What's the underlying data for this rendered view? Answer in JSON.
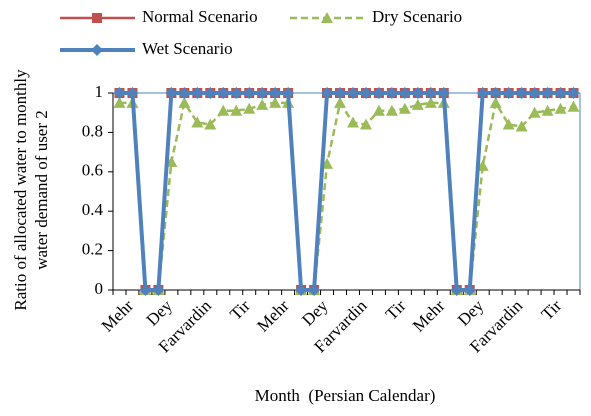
{
  "chart_data": {
    "type": "line",
    "ylabel": [
      "Ratio of allocated water to monthly",
      "water demand of user 2"
    ],
    "xlabel": "Month  (Persian Calendar)",
    "categories": [
      "Mehr",
      null,
      null,
      "Dey",
      null,
      null,
      "Farvardin",
      null,
      null,
      "Tir",
      null,
      null,
      "Mehr",
      null,
      null,
      "Dey",
      null,
      null,
      "Farvardin",
      null,
      null,
      "Tir",
      null,
      null,
      "Mehr",
      null,
      null,
      "Dey",
      null,
      null,
      "Farvardin",
      null,
      null,
      "Tir",
      null,
      null
    ],
    "series": [
      {
        "name": "Normal Scenario",
        "color": "#c0504d",
        "marker": "square",
        "dash": false,
        "values": [
          1,
          1,
          0,
          0,
          1,
          1,
          1,
          1,
          1,
          1,
          1,
          1,
          1,
          1,
          0,
          0,
          1,
          1,
          1,
          1,
          1,
          1,
          1,
          1,
          1,
          1,
          0,
          0,
          1,
          1,
          1,
          1,
          1,
          1,
          1,
          1
        ]
      },
      {
        "name": "Dry Scenario",
        "color": "#9bbb59",
        "marker": "triangle",
        "dash": true,
        "values": [
          0.95,
          0.95,
          0,
          0,
          0.65,
          0.95,
          0.85,
          0.84,
          0.91,
          0.91,
          0.92,
          0.94,
          0.95,
          0.95,
          0,
          0,
          0.64,
          0.95,
          0.85,
          0.84,
          0.91,
          0.91,
          0.92,
          0.94,
          0.95,
          0.95,
          0,
          0,
          0.63,
          0.95,
          0.84,
          0.83,
          0.9,
          0.91,
          0.92,
          0.93
        ]
      },
      {
        "name": "Wet Scenario",
        "color": "#4f81bd",
        "marker": "diamond",
        "dash": false,
        "values": [
          1,
          1,
          0,
          0,
          1,
          1,
          1,
          1,
          1,
          1,
          1,
          1,
          1,
          1,
          0,
          0,
          1,
          1,
          1,
          1,
          1,
          1,
          1,
          1,
          1,
          1,
          0,
          0,
          1,
          1,
          1,
          1,
          1,
          1,
          1,
          1
        ]
      }
    ],
    "ylim": [
      0,
      1
    ],
    "yticks": [
      0,
      0.2,
      0.4,
      0.6,
      0.8,
      1
    ]
  }
}
